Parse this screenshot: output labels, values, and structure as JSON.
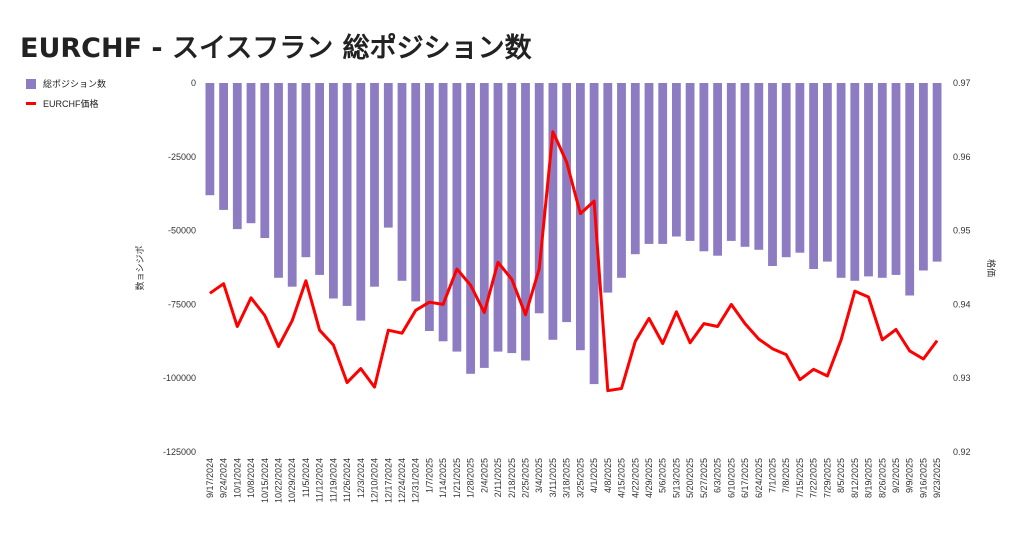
{
  "title": "EURCHF - スイスフラン 総ポジション数",
  "chart_data": {
    "type": "bar",
    "title": "EURCHF - スイスフラン 総ポジション数",
    "categories": [
      "9/17/2024",
      "9/24/2024",
      "10/1/2024",
      "10/8/2024",
      "10/15/2024",
      "10/22/2024",
      "10/29/2024",
      "11/5/2024",
      "11/12/2024",
      "11/19/2024",
      "11/26/2024",
      "12/3/2024",
      "12/10/2024",
      "12/17/2024",
      "12/24/2024",
      "12/31/2024",
      "1/7/2025",
      "1/14/2025",
      "1/21/2025",
      "1/28/2025",
      "2/4/2025",
      "2/11/2025",
      "2/18/2025",
      "2/25/2025",
      "3/4/2025",
      "3/11/2025",
      "3/18/2025",
      "3/25/2025",
      "4/1/2025",
      "4/8/2025",
      "4/15/2025",
      "4/22/2025",
      "4/29/2025",
      "5/6/2025",
      "5/13/2025",
      "5/20/2025",
      "5/27/2025",
      "6/3/2025",
      "6/10/2025",
      "6/17/2025",
      "6/24/2025",
      "7/1/2025",
      "7/8/2025",
      "7/15/2025",
      "7/22/2025",
      "7/29/2025",
      "8/5/2025",
      "8/12/2025",
      "8/19/2025",
      "8/26/2025",
      "9/2/2025",
      "9/9/2025",
      "9/16/2025",
      "9/23/2025"
    ],
    "series": [
      {
        "name": "総ポジション数",
        "type": "bar",
        "axis": "left",
        "color": "#8e7cc3",
        "values": [
          -38000,
          -43000,
          -49500,
          -47500,
          -52500,
          -66000,
          -69000,
          -59000,
          -65000,
          -73000,
          -75500,
          -80500,
          -69000,
          -49000,
          -67000,
          -74000,
          -84000,
          -87500,
          -91000,
          -98500,
          -96500,
          -91000,
          -91500,
          -94000,
          -78000,
          -87000,
          -81000,
          -90500,
          -102000,
          -71000,
          -66000,
          -58000,
          -54500,
          -54500,
          -52000,
          -53500,
          -57000,
          -58500,
          -53500,
          -55500,
          -56500,
          -62000,
          -59000,
          -57500,
          -63000,
          -60500,
          -66000,
          -67000,
          -65500,
          -66000,
          -65000,
          -72000,
          -63500,
          -60500
        ]
      },
      {
        "name": "EURCHF価格",
        "type": "line",
        "axis": "right",
        "color": "#ff0000",
        "values": [
          0.9415,
          0.9428,
          0.937,
          0.9409,
          0.9385,
          0.9343,
          0.9378,
          0.9432,
          0.9365,
          0.9345,
          0.9294,
          0.9313,
          0.9288,
          0.9365,
          0.9361,
          0.9392,
          0.9403,
          0.94,
          0.9448,
          0.9426,
          0.9389,
          0.9457,
          0.9434,
          0.9386,
          0.9448,
          0.9634,
          0.9593,
          0.9523,
          0.954,
          0.9283,
          0.9286,
          0.935,
          0.9381,
          0.9347,
          0.939,
          0.9348,
          0.9374,
          0.937,
          0.94,
          0.9374,
          0.9353,
          0.934,
          0.9332,
          0.9298,
          0.9312,
          0.9303,
          0.9352,
          0.9418,
          0.941,
          0.9352,
          0.9366,
          0.9337,
          0.9326,
          0.9351
        ]
      }
    ],
    "y_left": {
      "label": "数ョシジポ",
      "ticks": [
        0,
        -25000,
        -50000,
        -75000,
        -100000,
        -125000
      ],
      "ylim": [
        -125000,
        0
      ]
    },
    "y_right": {
      "label": "格価",
      "ticks": [
        0.97,
        0.96,
        0.95,
        0.94,
        0.93,
        0.92
      ],
      "ylim": [
        0.92,
        0.97
      ]
    },
    "legend_position": "top-left",
    "grid": false
  }
}
